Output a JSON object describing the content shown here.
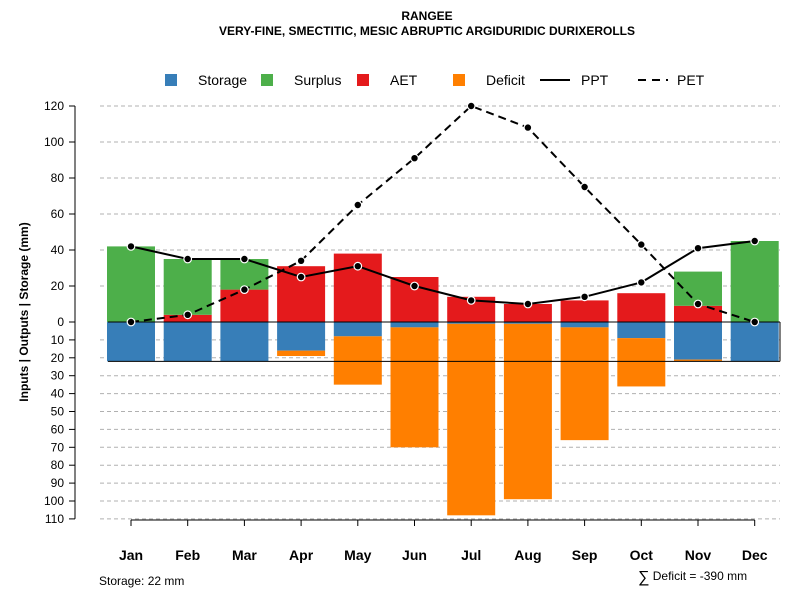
{
  "title": "RANGEE",
  "subtitle": "VERY-FINE, SMECTITIC, MESIC ABRUPTIC ARGIDURIDIC DURIXEROLLS",
  "footer": {
    "storage_text": "Storage: 22 mm",
    "deficit_symbol": "∑",
    "deficit_text": "Deficit = -390 mm"
  },
  "colors": {
    "storage": "#377EB8",
    "surplus": "#4DAF4A",
    "aet": "#E41A1C",
    "deficit": "#FF7F00"
  },
  "chart_data": {
    "type": "bar",
    "title": "RANGEE",
    "subtitle": "VERY-FINE, SMECTITIC, MESIC ABRUPTIC ARGIDURIDIC DURIXEROLLS",
    "ylabel": "Inputs | Outputs | Storage    (mm)",
    "xlabel": "",
    "categories": [
      "Jan",
      "Feb",
      "Mar",
      "Apr",
      "May",
      "Jun",
      "Jul",
      "Aug",
      "Sep",
      "Oct",
      "Nov",
      "Dec"
    ],
    "upper_axis": {
      "ylim": [
        0,
        120
      ],
      "ticks": [
        "0",
        "20",
        "40",
        "60",
        "80",
        "100",
        "120"
      ]
    },
    "lower_axis": {
      "ylim": [
        0,
        110
      ],
      "ticks": [
        "0",
        "10",
        "20",
        "30",
        "40",
        "50",
        "60",
        "70",
        "80",
        "90",
        "100",
        "110"
      ]
    },
    "grid": true,
    "legend_position": "top",
    "legend": [
      "Storage",
      "Surplus",
      "AET",
      "Deficit",
      "PPT",
      "PET"
    ],
    "series": [
      {
        "name": "AET",
        "kind": "bar-up",
        "values": [
          0,
          4,
          18,
          31,
          38,
          25,
          14,
          10,
          12,
          16,
          9,
          0
        ]
      },
      {
        "name": "Surplus",
        "kind": "bar-up",
        "values": [
          42,
          31,
          17,
          0,
          0,
          0,
          0,
          0,
          0,
          0,
          19,
          45
        ]
      },
      {
        "name": "Storage",
        "kind": "bar-down",
        "values": [
          22,
          22,
          22,
          16,
          8,
          3,
          1,
          1,
          3,
          9,
          21,
          22
        ]
      },
      {
        "name": "Deficit",
        "kind": "bar-down",
        "values": [
          0,
          0,
          0,
          3,
          27,
          67,
          107,
          98,
          63,
          27,
          1,
          0
        ]
      },
      {
        "name": "PPT",
        "kind": "line",
        "values": [
          42,
          35,
          35,
          25,
          31,
          20,
          12,
          10,
          14,
          22,
          41,
          45
        ]
      },
      {
        "name": "PET",
        "kind": "line-dashed",
        "values": [
          0,
          4,
          18,
          34,
          65,
          91,
          120,
          108,
          75,
          43,
          10,
          0
        ]
      }
    ],
    "storage_capacity_mm": 22
  }
}
